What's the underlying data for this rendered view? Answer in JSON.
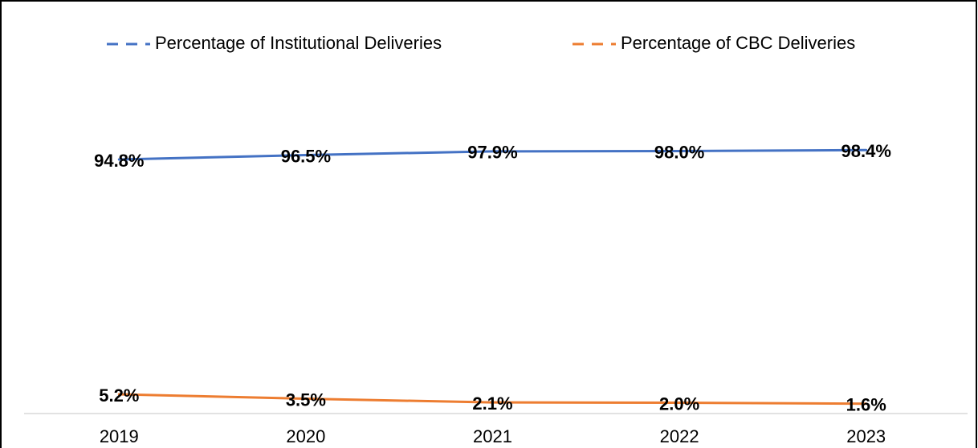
{
  "chart_data": {
    "type": "line",
    "categories": [
      "2019",
      "2020",
      "2021",
      "2022",
      "2023"
    ],
    "series": [
      {
        "name": "Percentage of Institutional Deliveries",
        "color": "#4472c4",
        "values": [
          94.8,
          96.5,
          97.9,
          98.0,
          98.4
        ],
        "value_labels": [
          "94.8%",
          "96.5%",
          "97.9%",
          "98.0%",
          "98.4%"
        ]
      },
      {
        "name": "Percentage of CBC Deliveries",
        "color": "#ed7d31",
        "values": [
          5.2,
          3.5,
          2.1,
          2.0,
          1.6
        ],
        "value_labels": [
          "5.2%",
          "3.5%",
          "2.1%",
          "2.0%",
          "1.6%"
        ]
      }
    ],
    "ylim": [
      0,
      100
    ],
    "legend": "top"
  }
}
